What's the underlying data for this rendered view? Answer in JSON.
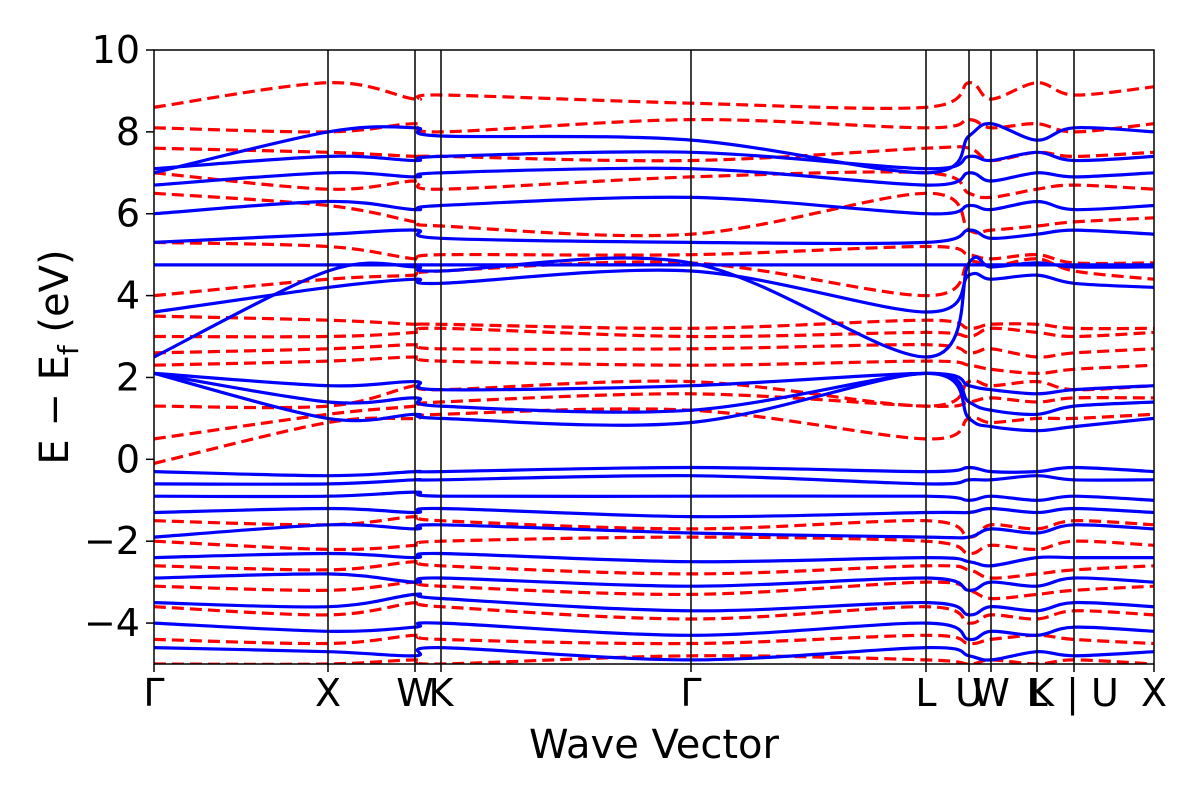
{
  "chart_data": {
    "type": "line",
    "title": "",
    "xlabel": "Wave Vector",
    "ylabel": "E − E_f (eV)",
    "ylabel_parts": {
      "main": "E − E",
      "sub": "f",
      "unit": " (eV)"
    },
    "ylim": [
      -5,
      10
    ],
    "yticks": [
      10,
      8,
      6,
      4,
      2,
      0,
      -2,
      -4
    ],
    "ytick_labels": [
      "10",
      "8",
      "6",
      "4",
      "2",
      "0",
      "−2",
      "−4"
    ],
    "xlim": [
      0,
      1
    ],
    "kpoints": [
      {
        "label": "Γ",
        "x": 0.0
      },
      {
        "label": "X",
        "x": 0.174
      },
      {
        "label": "W",
        "x": 0.261
      },
      {
        "label": "K",
        "x": 0.287
      },
      {
        "label": "Γ",
        "x": 0.537
      },
      {
        "label": "L",
        "x": 0.772
      },
      {
        "label": "U",
        "x": 0.815
      },
      {
        "label": "W",
        "x": 0.837
      },
      {
        "label": "L",
        "x": 0.883
      },
      {
        "label": "K | U",
        "x": 0.92
      },
      {
        "label": "X",
        "x": 1.0
      }
    ],
    "grid": false,
    "series": [
      {
        "style": "dashed",
        "color": "#ff0000",
        "bands": [
          [
            -5.0,
            -5.0,
            -4.9,
            -5.0,
            -4.8,
            -4.9,
            -5.0,
            -4.9,
            -5.0,
            -4.9,
            -5.0
          ],
          [
            -4.4,
            -4.5,
            -4.3,
            -4.4,
            -4.5,
            -4.3,
            -4.5,
            -4.4,
            -4.3,
            -4.4,
            -4.5
          ],
          [
            -3.6,
            -3.8,
            -3.5,
            -3.6,
            -3.9,
            -3.6,
            -4.0,
            -3.8,
            -3.9,
            -3.7,
            -3.8
          ],
          [
            -3.1,
            -3.2,
            -3.0,
            -3.1,
            -3.3,
            -3.0,
            -3.2,
            -3.4,
            -3.3,
            -3.2,
            -3.1
          ],
          [
            -2.6,
            -2.7,
            -2.5,
            -2.6,
            -2.8,
            -2.6,
            -2.7,
            -2.9,
            -2.8,
            -2.7,
            -2.6
          ],
          [
            -2.0,
            -2.2,
            -2.1,
            -2.0,
            -1.9,
            -2.0,
            -2.3,
            -2.1,
            -2.2,
            -2.0,
            -2.1
          ],
          [
            -1.5,
            -1.6,
            -1.4,
            -1.5,
            -1.7,
            -1.5,
            -1.9,
            -1.6,
            -1.7,
            -1.5,
            -1.6
          ],
          [
            -0.1,
            0.9,
            1.0,
            1.1,
            1.2,
            0.5,
            1.0,
            0.9,
            1.0,
            1.0,
            1.1
          ],
          [
            0.5,
            1.1,
            1.3,
            1.4,
            1.6,
            1.3,
            1.4,
            1.5,
            1.4,
            1.5,
            1.5
          ],
          [
            1.3,
            1.3,
            1.8,
            1.7,
            1.9,
            1.3,
            1.9,
            1.8,
            1.9,
            1.7,
            1.8
          ],
          [
            2.3,
            2.4,
            2.5,
            2.4,
            2.3,
            2.4,
            2.3,
            2.2,
            2.1,
            2.2,
            2.3
          ],
          [
            2.6,
            2.7,
            2.8,
            2.7,
            2.7,
            2.8,
            2.6,
            2.7,
            2.5,
            2.6,
            2.7
          ],
          [
            3.0,
            3.0,
            3.1,
            3.2,
            3.0,
            3.1,
            3.0,
            3.2,
            3.1,
            3.0,
            3.1
          ],
          [
            3.5,
            3.4,
            3.3,
            3.3,
            3.2,
            3.4,
            3.2,
            3.3,
            3.3,
            3.2,
            3.2
          ],
          [
            4.0,
            4.4,
            4.5,
            4.6,
            4.8,
            4.0,
            4.8,
            4.7,
            4.9,
            4.6,
            4.4
          ],
          [
            5.3,
            5.2,
            4.9,
            5.0,
            5.0,
            5.2,
            5.0,
            4.9,
            5.0,
            4.8,
            4.8
          ],
          [
            6.5,
            6.2,
            5.8,
            5.7,
            5.5,
            6.5,
            5.6,
            5.6,
            5.7,
            5.8,
            5.9
          ],
          [
            7.0,
            6.6,
            6.8,
            6.6,
            6.9,
            7.0,
            6.5,
            6.4,
            6.6,
            6.7,
            6.6
          ],
          [
            7.6,
            7.5,
            7.4,
            7.4,
            7.3,
            7.6,
            7.6,
            7.3,
            7.5,
            7.4,
            7.5
          ],
          [
            8.1,
            8.0,
            8.2,
            8.0,
            8.3,
            8.1,
            8.3,
            8.1,
            8.2,
            8.0,
            8.2
          ],
          [
            8.6,
            9.2,
            8.8,
            8.9,
            8.7,
            8.6,
            9.2,
            8.8,
            9.2,
            8.9,
            9.1
          ]
        ]
      },
      {
        "style": "solid",
        "color": "#0000ff",
        "bands": [
          [
            -4.6,
            -4.7,
            -4.8,
            -4.6,
            -4.9,
            -4.6,
            -4.8,
            -4.9,
            -4.7,
            -4.8,
            -4.7
          ],
          [
            -4.0,
            -4.2,
            -4.1,
            -4.0,
            -4.3,
            -4.0,
            -4.4,
            -4.2,
            -4.3,
            -4.1,
            -4.2
          ],
          [
            -3.5,
            -3.6,
            -3.3,
            -3.4,
            -3.7,
            -3.5,
            -3.8,
            -3.6,
            -3.7,
            -3.5,
            -3.6
          ],
          [
            -2.9,
            -2.8,
            -3.0,
            -2.9,
            -3.1,
            -2.9,
            -3.2,
            -3.0,
            -3.1,
            -2.9,
            -3.0
          ],
          [
            -2.4,
            -2.3,
            -2.4,
            -2.3,
            -2.5,
            -2.4,
            -2.5,
            -2.6,
            -2.4,
            -2.4,
            -2.4
          ],
          [
            -1.9,
            -1.6,
            -1.7,
            -1.6,
            -1.8,
            -1.9,
            -1.9,
            -1.7,
            -1.8,
            -1.6,
            -1.7
          ],
          [
            -1.3,
            -1.2,
            -1.3,
            -1.2,
            -1.4,
            -1.3,
            -1.3,
            -1.2,
            -1.3,
            -1.2,
            -1.3
          ],
          [
            -0.9,
            -0.9,
            -0.8,
            -0.9,
            -0.9,
            -0.9,
            -1.0,
            -0.9,
            -1.0,
            -0.9,
            -1.0
          ],
          [
            -0.6,
            -0.6,
            -0.5,
            -0.5,
            -0.4,
            -0.6,
            -0.5,
            -0.5,
            -0.4,
            -0.5,
            -0.5
          ],
          [
            -0.3,
            -0.4,
            -0.3,
            -0.3,
            -0.2,
            -0.3,
            -0.2,
            -0.3,
            -0.3,
            -0.2,
            -0.3
          ],
          [
            2.1,
            1.0,
            1.1,
            1.0,
            0.9,
            2.1,
            1.0,
            0.8,
            0.7,
            0.8,
            1.0
          ],
          [
            2.1,
            1.4,
            1.5,
            1.3,
            1.2,
            2.1,
            1.4,
            1.2,
            1.1,
            1.3,
            1.4
          ],
          [
            2.1,
            1.8,
            1.9,
            1.7,
            1.8,
            2.1,
            1.8,
            1.7,
            1.6,
            1.7,
            1.8
          ],
          [
            2.5,
            4.6,
            4.7,
            4.6,
            4.8,
            2.5,
            4.8,
            4.7,
            4.8,
            4.7,
            4.7
          ],
          [
            3.6,
            4.2,
            4.4,
            4.3,
            4.6,
            3.6,
            4.5,
            4.4,
            4.5,
            4.3,
            4.2
          ],
          [
            4.75,
            4.75,
            4.75,
            4.75,
            4.75,
            4.75,
            4.75,
            4.75,
            4.75,
            4.75,
            4.75
          ],
          [
            5.3,
            5.5,
            5.6,
            5.4,
            5.3,
            5.3,
            5.6,
            5.4,
            5.5,
            5.6,
            5.5
          ],
          [
            6.0,
            6.3,
            6.1,
            6.2,
            6.4,
            6.0,
            6.2,
            6.1,
            6.3,
            6.1,
            6.2
          ],
          [
            6.7,
            7.0,
            6.9,
            7.0,
            7.1,
            6.7,
            7.0,
            6.8,
            7.0,
            6.9,
            7.0
          ],
          [
            7.1,
            7.4,
            7.3,
            7.4,
            7.5,
            7.1,
            7.4,
            7.3,
            7.5,
            7.3,
            7.4
          ],
          [
            7.0,
            8.0,
            8.1,
            7.9,
            7.8,
            7.0,
            7.9,
            8.2,
            7.8,
            8.1,
            8.0
          ]
        ]
      }
    ]
  }
}
